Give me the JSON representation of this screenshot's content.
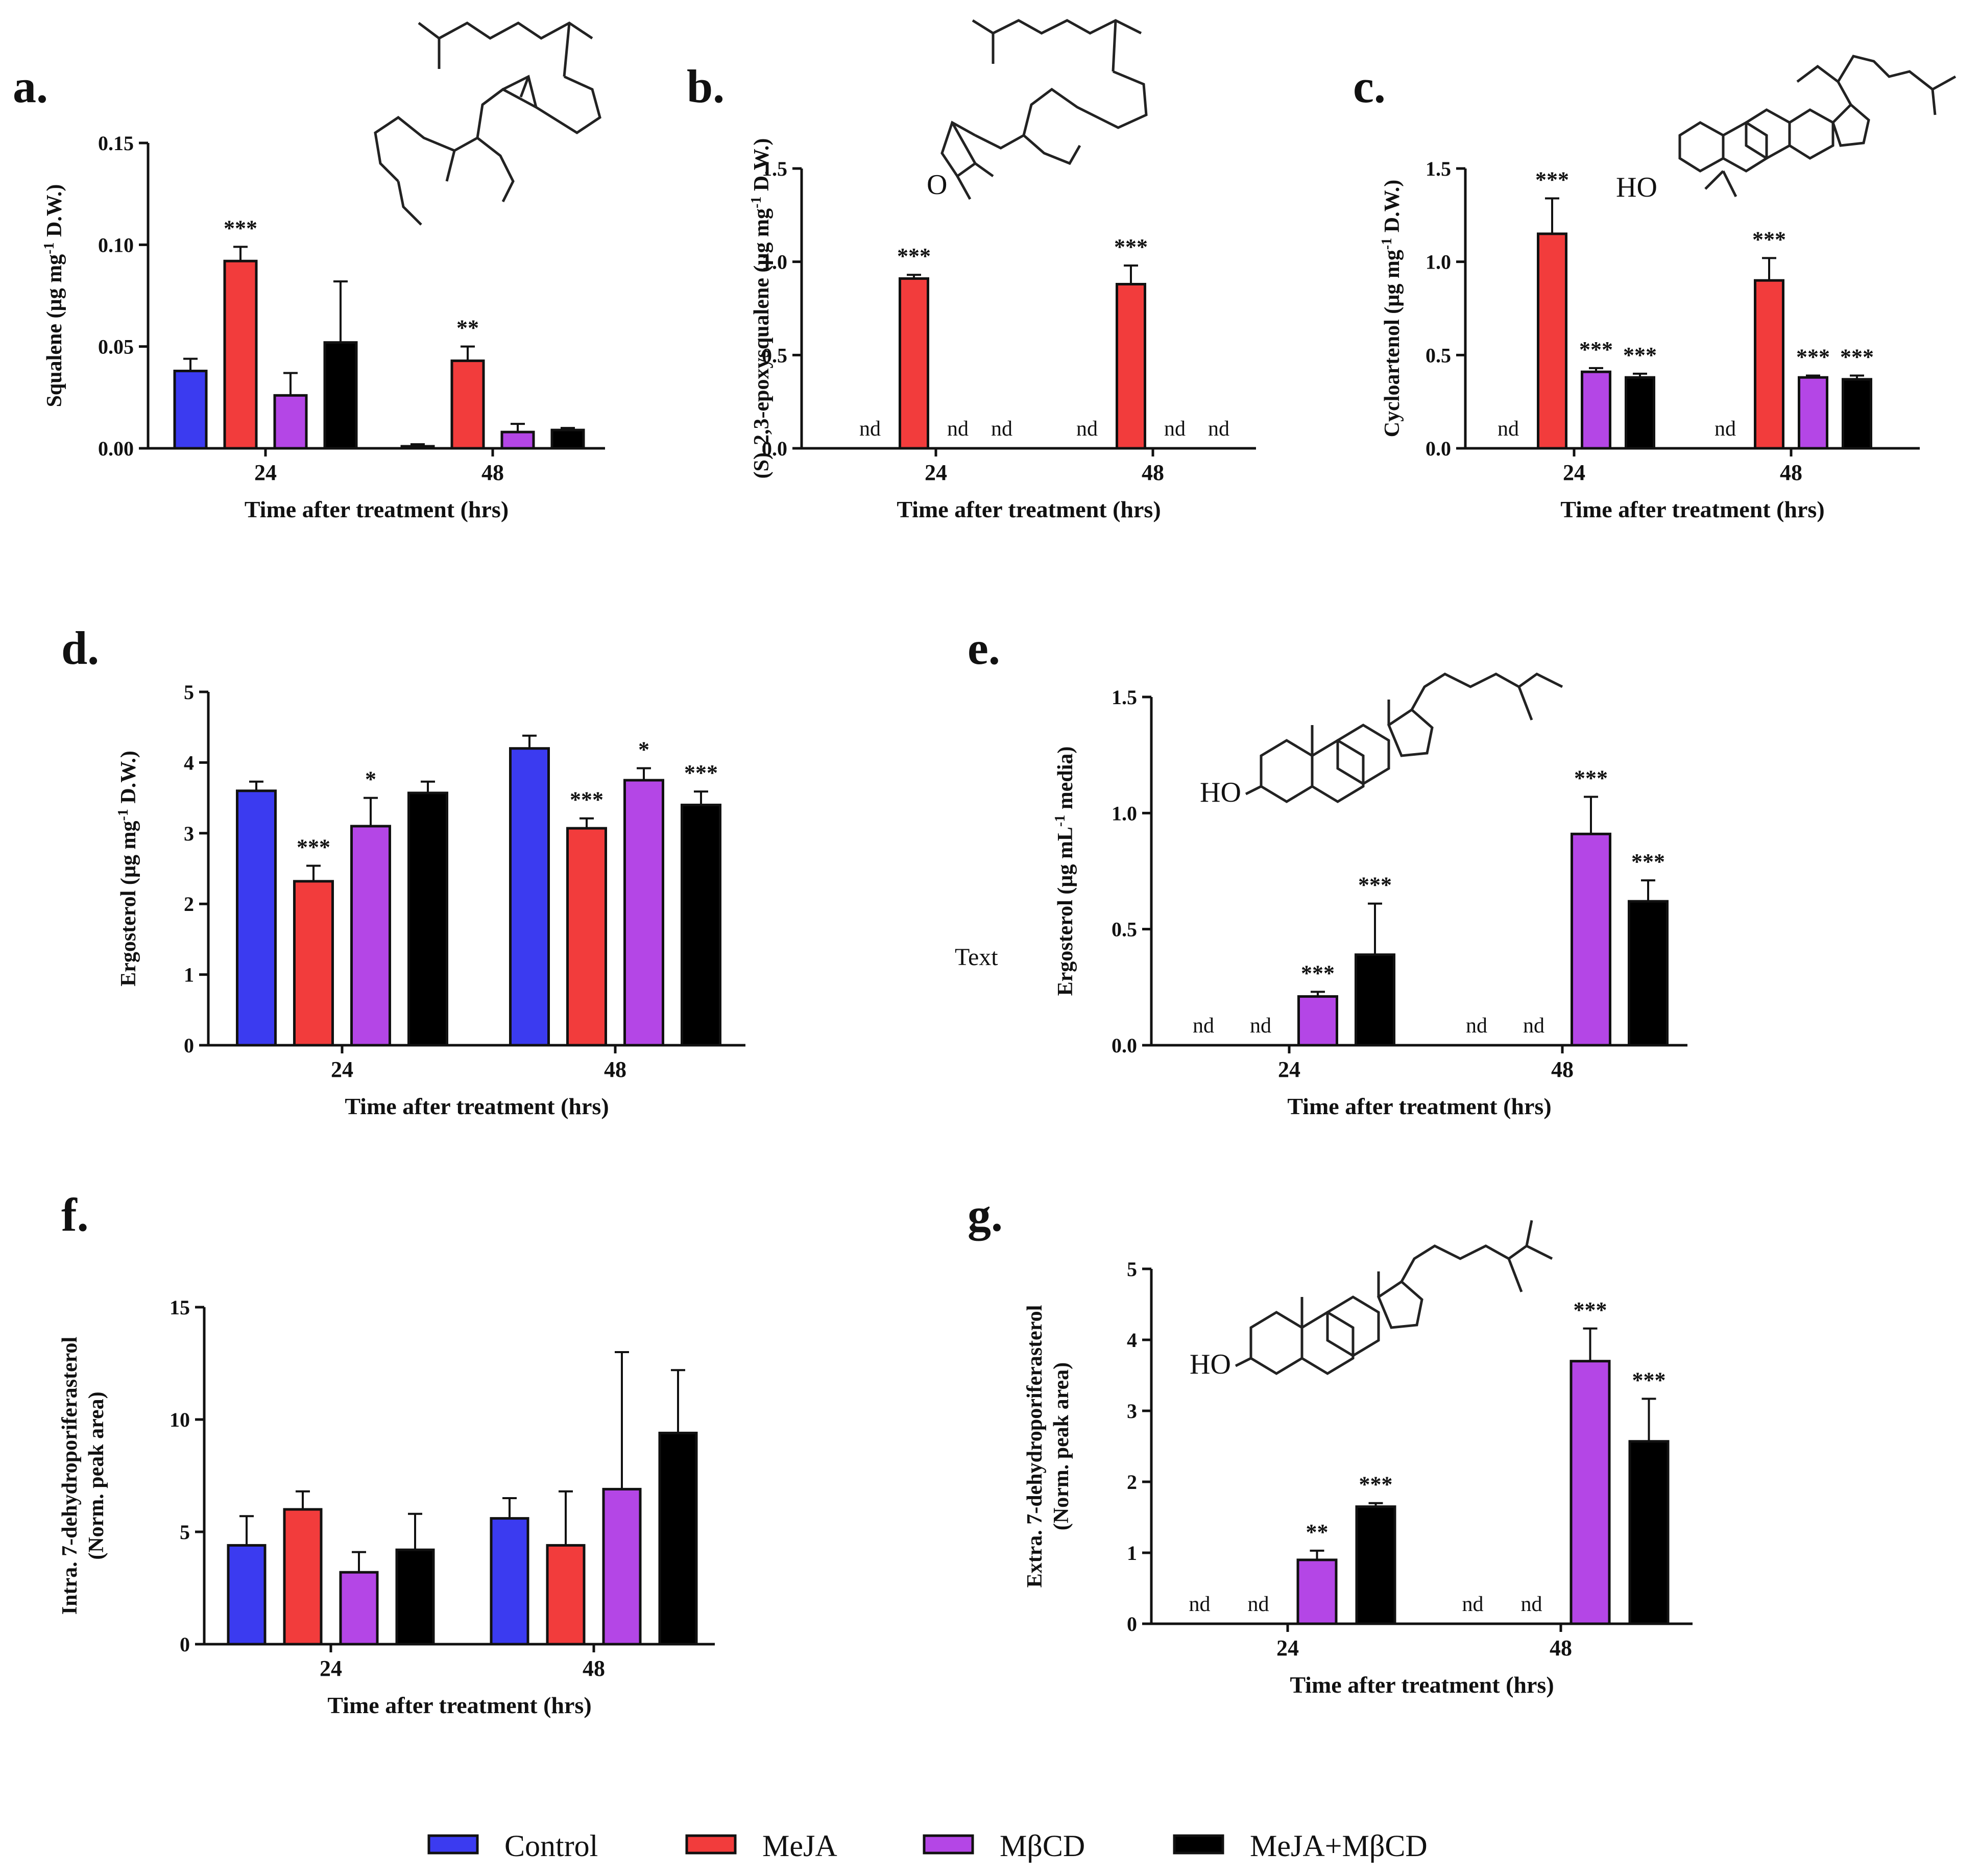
{
  "figure": {
    "stray_text": "Text",
    "legend": [
      {
        "label": "Control",
        "color": "#3b3bf0"
      },
      {
        "label": "MeJA",
        "color": "#f23c3c"
      },
      {
        "label": "MβCD",
        "color": "#b446e6"
      },
      {
        "label": "MeJA+MβCD",
        "color": "#000000"
      }
    ],
    "molecule_labels": {
      "hydroxyl": "HO",
      "epoxide_oxygen": "O"
    }
  },
  "chart_data": [
    {
      "panel": "a.",
      "type": "bar",
      "title": "",
      "xlabel": "Time after treatment (hrs)",
      "ylabel": "Squalene (µg mg-1 D.W.)",
      "ylabel_parts": [
        "Squalene (µg mg",
        "-1",
        " D.W.)"
      ],
      "categories": [
        "24",
        "48"
      ],
      "ylim": [
        0,
        0.15
      ],
      "yticks": [
        "0.00",
        "0.05",
        "0.10",
        "0.15"
      ],
      "series": [
        {
          "name": "Control",
          "values": [
            0.038,
            0.001
          ],
          "errors": [
            0.006,
            0.001
          ],
          "labels": [
            "",
            ""
          ]
        },
        {
          "name": "MeJA",
          "values": [
            0.092,
            0.043
          ],
          "errors": [
            0.007,
            0.007
          ],
          "labels": [
            "***",
            "**"
          ]
        },
        {
          "name": "MβCD",
          "values": [
            0.026,
            0.008
          ],
          "errors": [
            0.011,
            0.004
          ],
          "labels": [
            "",
            ""
          ]
        },
        {
          "name": "MeJA+MβCD",
          "values": [
            0.052,
            0.009
          ],
          "errors": [
            0.03,
            0.001
          ],
          "labels": [
            "",
            ""
          ]
        }
      ]
    },
    {
      "panel": "b.",
      "type": "bar",
      "title": "",
      "xlabel": "Time after treatment (hrs)",
      "ylabel": "(S)-2,3-epoxysqualene (µg mg-1 D.W.)",
      "ylabel_parts": [
        "(S)-2,3-epoxysqualene (µg mg",
        "-1",
        " D.W.)"
      ],
      "categories": [
        "24",
        "48"
      ],
      "ylim": [
        0,
        1.5
      ],
      "yticks": [
        "0.0",
        "0.5",
        "1.0",
        "1.5"
      ],
      "series": [
        {
          "name": "Control",
          "values": [
            0,
            0
          ],
          "errors": [
            0,
            0
          ],
          "labels": [
            "nd",
            "nd"
          ]
        },
        {
          "name": "MeJA",
          "values": [
            0.91,
            0.88
          ],
          "errors": [
            0.02,
            0.1
          ],
          "labels": [
            "***",
            "***"
          ]
        },
        {
          "name": "MβCD",
          "values": [
            0,
            0
          ],
          "errors": [
            0,
            0
          ],
          "labels": [
            "nd",
            "nd"
          ]
        },
        {
          "name": "MeJA+MβCD",
          "values": [
            0,
            0
          ],
          "errors": [
            0,
            0
          ],
          "labels": [
            "nd",
            "nd"
          ]
        }
      ]
    },
    {
      "panel": "c.",
      "type": "bar",
      "title": "",
      "xlabel": "Time after treatment (hrs)",
      "ylabel": "Cycloartenol (µg mg-1 D.W.)",
      "ylabel_parts": [
        "Cycloartenol (µg mg",
        "-1",
        " D.W.)"
      ],
      "categories": [
        "24",
        "48"
      ],
      "ylim": [
        0,
        1.5
      ],
      "yticks": [
        "0.0",
        "0.5",
        "1.0",
        "1.5"
      ],
      "series": [
        {
          "name": "Control",
          "values": [
            0,
            0
          ],
          "errors": [
            0,
            0
          ],
          "labels": [
            "nd",
            "nd"
          ]
        },
        {
          "name": "MeJA",
          "values": [
            1.15,
            0.9
          ],
          "errors": [
            0.19,
            0.12
          ],
          "labels": [
            "***",
            "***"
          ]
        },
        {
          "name": "MβCD",
          "values": [
            0.41,
            0.38
          ],
          "errors": [
            0.02,
            0.01
          ],
          "labels": [
            "***",
            "***"
          ]
        },
        {
          "name": "MeJA+MβCD",
          "values": [
            0.38,
            0.37
          ],
          "errors": [
            0.02,
            0.02
          ],
          "labels": [
            "***",
            "***"
          ]
        }
      ]
    },
    {
      "panel": "d.",
      "type": "bar",
      "title": "",
      "xlabel": "Time after treatment (hrs)",
      "ylabel": "Ergosterol (µg mg-1 D.W.)",
      "ylabel_parts": [
        "Ergosterol (µg mg",
        "-1",
        " D.W.)"
      ],
      "categories": [
        "24",
        "48"
      ],
      "ylim": [
        0,
        5
      ],
      "yticks": [
        "0",
        "1",
        "2",
        "3",
        "4",
        "5"
      ],
      "series": [
        {
          "name": "Control",
          "values": [
            3.6,
            4.2
          ],
          "errors": [
            0.13,
            0.18
          ],
          "labels": [
            "",
            ""
          ]
        },
        {
          "name": "MeJA",
          "values": [
            2.32,
            3.07
          ],
          "errors": [
            0.22,
            0.14
          ],
          "labels": [
            "***",
            "***"
          ]
        },
        {
          "name": "MβCD",
          "values": [
            3.1,
            3.75
          ],
          "errors": [
            0.4,
            0.17
          ],
          "labels": [
            "*",
            "*"
          ]
        },
        {
          "name": "MeJA+MβCD",
          "values": [
            3.57,
            3.4
          ],
          "errors": [
            0.16,
            0.19
          ],
          "labels": [
            "",
            "***"
          ]
        }
      ]
    },
    {
      "panel": "e.",
      "type": "bar",
      "title": "",
      "xlabel": "Time after treatment (hrs)",
      "ylabel": "Ergosterol (µg mL-1 media)",
      "ylabel_parts": [
        "Ergosterol (µg mL",
        "-1",
        " media)"
      ],
      "categories": [
        "24",
        "48"
      ],
      "ylim": [
        0,
        1.5
      ],
      "yticks": [
        "0.0",
        "0.5",
        "1.0",
        "1.5"
      ],
      "series": [
        {
          "name": "Control",
          "values": [
            0,
            0
          ],
          "errors": [
            0,
            0
          ],
          "labels": [
            "nd",
            "nd"
          ]
        },
        {
          "name": "MeJA",
          "values": [
            0,
            0
          ],
          "errors": [
            0,
            0
          ],
          "labels": [
            "nd",
            "nd"
          ]
        },
        {
          "name": "MβCD",
          "values": [
            0.21,
            0.91
          ],
          "errors": [
            0.02,
            0.16
          ],
          "labels": [
            "***",
            "***"
          ]
        },
        {
          "name": "MeJA+MβCD",
          "values": [
            0.39,
            0.62
          ],
          "errors": [
            0.22,
            0.09
          ],
          "labels": [
            "***",
            "***"
          ]
        }
      ]
    },
    {
      "panel": "f.",
      "type": "bar",
      "title": "",
      "xlabel": "Time after treatment (hrs)",
      "ylabel": "Intra. 7-dehydroporiferasterol (Norm. peak area)",
      "ylabel_lines": [
        "Intra. 7-dehydroporiferasterol",
        "(Norm. peak area)"
      ],
      "categories": [
        "24",
        "48"
      ],
      "ylim": [
        0,
        15
      ],
      "yticks": [
        "0",
        "5",
        "10",
        "15"
      ],
      "series": [
        {
          "name": "Control",
          "values": [
            4.4,
            5.6
          ],
          "errors": [
            1.3,
            0.9
          ],
          "labels": [
            "",
            ""
          ]
        },
        {
          "name": "MeJA",
          "values": [
            6.0,
            4.4
          ],
          "errors": [
            0.8,
            2.4
          ],
          "labels": [
            "",
            ""
          ]
        },
        {
          "name": "MβCD",
          "values": [
            3.2,
            6.9
          ],
          "errors": [
            0.9,
            6.1
          ],
          "labels": [
            "",
            ""
          ]
        },
        {
          "name": "MeJA+MβCD",
          "values": [
            4.2,
            9.4
          ],
          "errors": [
            1.6,
            2.8
          ],
          "labels": [
            "",
            ""
          ]
        }
      ]
    },
    {
      "panel": "g.",
      "type": "bar",
      "title": "",
      "xlabel": "Time after treatment (hrs)",
      "ylabel": "Extra. 7-dehydroporiferasterol (Norm. peak area)",
      "ylabel_lines": [
        "Extra. 7-dehydroporiferasterol",
        "(Norm. peak area)"
      ],
      "categories": [
        "24",
        "48"
      ],
      "ylim": [
        0,
        5
      ],
      "yticks": [
        "0",
        "1",
        "2",
        "3",
        "4",
        "5"
      ],
      "series": [
        {
          "name": "Control",
          "values": [
            0,
            0
          ],
          "errors": [
            0,
            0
          ],
          "labels": [
            "nd",
            "nd"
          ]
        },
        {
          "name": "MeJA",
          "values": [
            0,
            0
          ],
          "errors": [
            0,
            0
          ],
          "labels": [
            "nd",
            "nd"
          ]
        },
        {
          "name": "MβCD",
          "values": [
            0.9,
            3.7
          ],
          "errors": [
            0.13,
            0.46
          ],
          "labels": [
            "**",
            "***"
          ]
        },
        {
          "name": "MeJA+MβCD",
          "values": [
            1.65,
            2.57
          ],
          "errors": [
            0.05,
            0.6
          ],
          "labels": [
            "***",
            "***"
          ]
        }
      ]
    }
  ]
}
